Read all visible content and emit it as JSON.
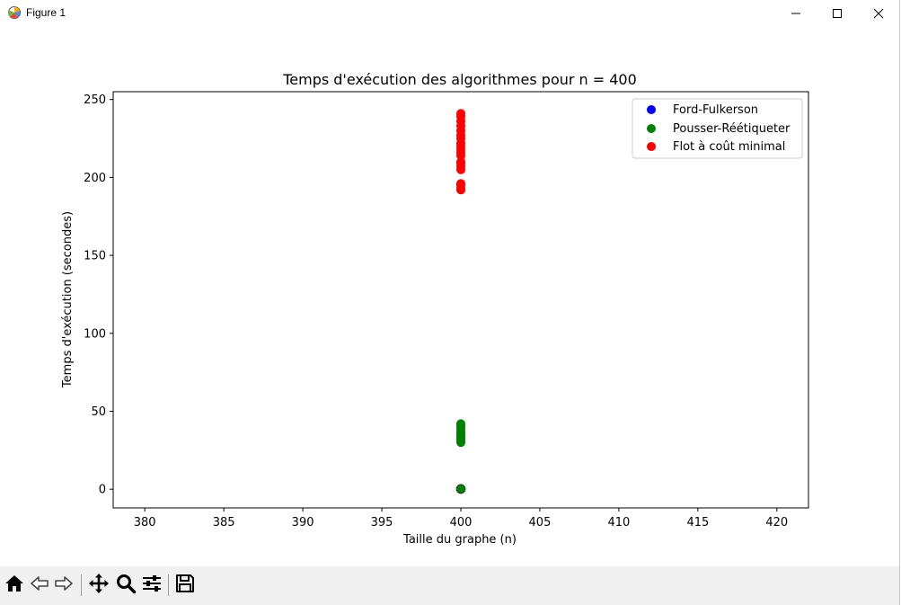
{
  "window": {
    "title": "Figure 1",
    "icon": "matplotlib-icon",
    "controls": [
      "minimize-icon",
      "maximize-icon",
      "close-icon"
    ]
  },
  "toolbar": {
    "buttons": [
      {
        "name": "home-button",
        "icon": "home-icon"
      },
      {
        "name": "back-button",
        "icon": "back-arrow-icon"
      },
      {
        "name": "forward-button",
        "icon": "forward-arrow-icon"
      },
      {
        "name": "pan-button",
        "icon": "move-icon"
      },
      {
        "name": "zoom-button",
        "icon": "magnifier-icon"
      },
      {
        "name": "configure-subplots-button",
        "icon": "sliders-icon"
      },
      {
        "name": "save-button",
        "icon": "floppy-disk-icon"
      }
    ]
  },
  "chart_data": {
    "type": "scatter",
    "title": "Temps d'exécution des algorithmes pour n = 400",
    "xlabel": "Taille du graphe (n)",
    "ylabel": "Temps d'exécution (secondes)",
    "xlim": [
      378,
      422
    ],
    "ylim": [
      -12,
      255
    ],
    "xticks": [
      380,
      385,
      390,
      395,
      400,
      405,
      410,
      415,
      420
    ],
    "yticks": [
      0,
      50,
      100,
      150,
      200,
      250
    ],
    "grid": false,
    "legend_position": "top-right",
    "series": [
      {
        "name": "Ford-Fulkerson",
        "color": "#0000ff",
        "x": [
          400,
          400,
          400,
          400,
          400
        ],
        "y": [
          0.1,
          0.15,
          0.2,
          0.12,
          0.18
        ]
      },
      {
        "name": "Pousser-Réétiqueter",
        "color": "#008000",
        "x": [
          400,
          400,
          400,
          400,
          400,
          400,
          400,
          400,
          400,
          400,
          400,
          400
        ],
        "y": [
          0.2,
          30,
          31,
          32,
          33,
          34,
          35,
          36,
          38,
          40,
          41,
          42
        ]
      },
      {
        "name": "Flot à coût minimal",
        "color": "#ff0000",
        "x": [
          400,
          400,
          400,
          400,
          400,
          400,
          400,
          400,
          400,
          400,
          400,
          400,
          400,
          400,
          400,
          400,
          400,
          400,
          400,
          400
        ],
        "y": [
          192,
          193,
          195,
          196,
          205,
          207,
          209,
          210,
          214,
          216,
          218,
          220,
          222,
          225,
          227,
          230,
          233,
          236,
          239,
          241
        ]
      }
    ]
  }
}
